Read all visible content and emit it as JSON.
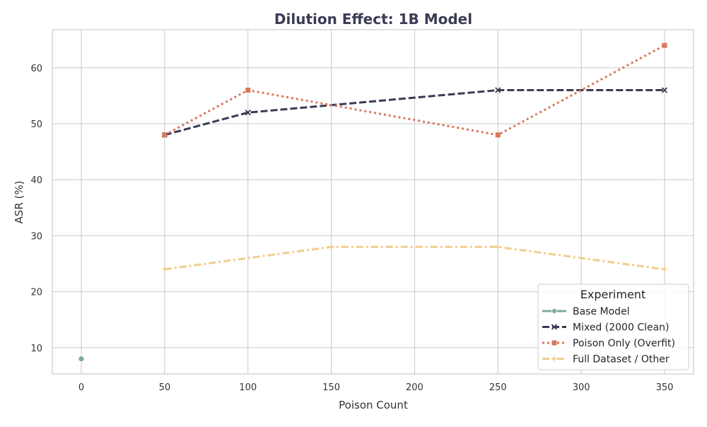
{
  "chart_data": {
    "type": "line",
    "title": "Dilution Effect: 1B Model",
    "xlabel": "Poison Count",
    "ylabel": "ASR (%)",
    "xlim": [
      -17.4,
      367.4
    ],
    "ylim": [
      5.3,
      66.8
    ],
    "xticks": [
      0,
      50,
      100,
      150,
      200,
      250,
      300,
      350
    ],
    "yticks": [
      10,
      20,
      30,
      40,
      50,
      60
    ],
    "grid": true,
    "legend": {
      "title": "Experiment",
      "placement": "bottom-right"
    },
    "series": [
      {
        "name": "Base Model",
        "color": "#7aab94",
        "dash": "solid",
        "marker": "circle",
        "x": [
          0
        ],
        "y": [
          8
        ]
      },
      {
        "name": "Mixed (2000 Clean)",
        "color": "#3b3b55",
        "dash": "dashed",
        "marker": "x",
        "x": [
          50,
          100,
          250,
          350
        ],
        "y": [
          48,
          52,
          56,
          56
        ]
      },
      {
        "name": "Poison Only (Overfit)",
        "color": "#d9775b",
        "dash": "dotted",
        "marker": "square",
        "x": [
          50,
          100,
          250,
          350
        ],
        "y": [
          48,
          56,
          48,
          64
        ]
      },
      {
        "name": "Full Dataset / Other",
        "color": "#f0cd8c",
        "dash": "dashdot",
        "marker": "plus",
        "x": [
          50,
          150,
          250,
          350
        ],
        "y": [
          24,
          28,
          28,
          24
        ]
      }
    ]
  }
}
